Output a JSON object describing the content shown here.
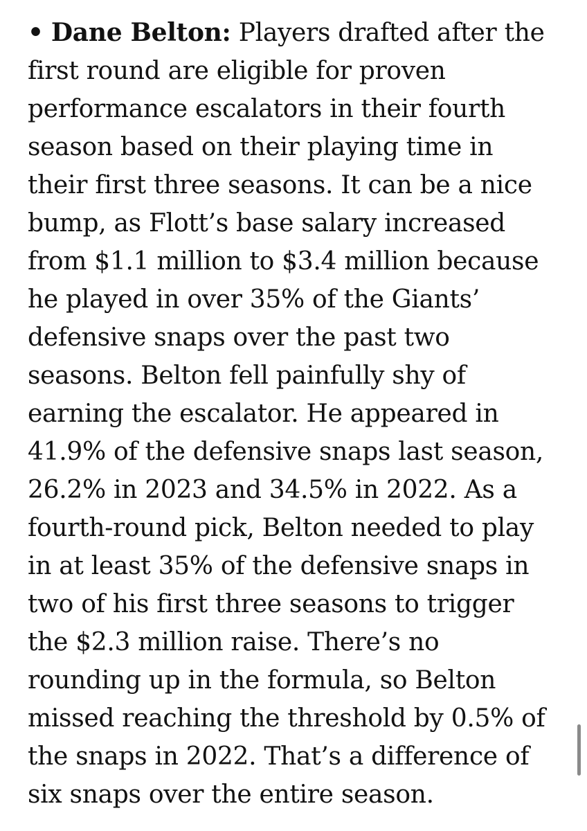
{
  "article": {
    "bullet": "•",
    "player_name": "Dane Belton:",
    "lines": [
      "Players drafted after the",
      "first round are eligible for proven",
      "performance escalators in their fourth",
      "season based on their playing time in",
      "their first three seasons. It can be a nice",
      "bump, as Flott’s base salary increased",
      "from $1.1 million to $3.4 million because",
      "he played in over 35% of the Giants’",
      "defensive snaps over the past two",
      "seasons. Belton fell painfully shy of",
      "earning the escalator. He appeared in",
      "41.9% of the defensive snaps last season,",
      "26.2% in 2023 and 34.5% in 2022. As a",
      "fourth-round pick, Belton needed to play",
      "in at least 35% of the defensive snaps in",
      "two of his first three seasons to trigger",
      "the $2.3 million raise. There’s no",
      "rounding up in the formula, so Belton",
      "missed reaching the threshold by 0.5% of",
      "the snaps in 2022. That’s a difference of",
      "six snaps over the entire season."
    ]
  }
}
